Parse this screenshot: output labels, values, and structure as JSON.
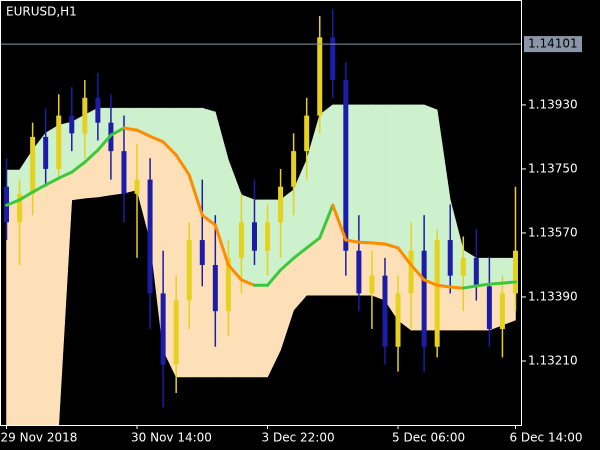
{
  "chart_data": {
    "type": "candlestick",
    "title": "EURUSD,H1",
    "categories": [
      "29 Nov 2018",
      null,
      null,
      null,
      null,
      null,
      null,
      null,
      null,
      null,
      "30 Nov 14:00",
      null,
      null,
      null,
      null,
      null,
      null,
      null,
      null,
      null,
      "3 Dec 22:00",
      null,
      null,
      null,
      null,
      null,
      null,
      null,
      null,
      null,
      "5 Dec 06:00",
      null,
      null,
      null,
      null,
      null,
      null,
      null,
      null,
      "6 Dec 14:00"
    ],
    "open": [
      1.137,
      1.136,
      1.1368,
      1.1384,
      1.1375,
      1.139,
      1.1385,
      1.1395,
      1.1388,
      1.138,
      1.1368,
      1.1372,
      1.134,
      1.132,
      1.1338,
      1.1355,
      1.1348,
      1.1335,
      1.135,
      1.136,
      1.1352,
      1.136,
      1.137,
      1.138,
      1.139,
      1.1412,
      1.14,
      1.1352,
      1.134,
      1.1345,
      1.1325,
      1.134,
      1.1352,
      1.1325,
      1.1355,
      1.1345,
      1.135,
      1.1342,
      1.133,
      1.134
    ],
    "high": [
      1.1378,
      1.1372,
      1.1388,
      1.1392,
      1.1396,
      1.1398,
      1.14,
      1.1402,
      1.1396,
      1.139,
      1.1382,
      1.1378,
      1.1352,
      1.1345,
      1.136,
      1.1372,
      1.1362,
      1.1355,
      1.1368,
      1.1372,
      1.1365,
      1.1375,
      1.1385,
      1.1395,
      1.1418,
      1.142,
      1.1405,
      1.1362,
      1.1352,
      1.135,
      1.1345,
      1.136,
      1.1362,
      1.1358,
      1.1365,
      1.1356,
      1.1358,
      1.135,
      1.1345,
      1.137
    ],
    "low": [
      1.1355,
      1.1348,
      1.1362,
      1.137,
      1.1372,
      1.138,
      1.1378,
      1.1383,
      1.1372,
      1.136,
      1.135,
      1.133,
      1.1308,
      1.1312,
      1.133,
      1.1342,
      1.1325,
      1.1328,
      1.134,
      1.1348,
      1.1345,
      1.135,
      1.1362,
      1.1372,
      1.1385,
      1.1395,
      1.1345,
      1.1335,
      1.133,
      1.132,
      1.1318,
      1.133,
      1.1318,
      1.1322,
      1.134,
      1.1335,
      1.1338,
      1.1325,
      1.1322,
      1.1335
    ],
    "close": [
      1.136,
      1.1368,
      1.1384,
      1.1375,
      1.139,
      1.1385,
      1.1395,
      1.1388,
      1.138,
      1.1368,
      1.1372,
      1.134,
      1.132,
      1.1338,
      1.1355,
      1.1348,
      1.1335,
      1.135,
      1.136,
      1.1352,
      1.136,
      1.137,
      1.138,
      1.139,
      1.1412,
      1.14,
      1.1352,
      1.134,
      1.1345,
      1.1325,
      1.134,
      1.1352,
      1.1325,
      1.1355,
      1.1345,
      1.135,
      1.1342,
      1.133,
      1.134,
      1.1352
    ],
    "up_color": "#e6d21e",
    "down_color": "#1c1ca8",
    "bands": {
      "upper": [
        1.13747,
        1.13747,
        1.13803,
        1.13851,
        1.13873,
        1.13882,
        1.13902,
        1.13921,
        1.13921,
        1.13921,
        1.13921,
        1.13921,
        1.13921,
        1.13921,
        1.13921,
        1.13921,
        1.1391,
        1.13775,
        1.13677,
        1.13663,
        1.13663,
        1.13663,
        1.13691,
        1.13775,
        1.13902,
        1.1393,
        1.1393,
        1.1393,
        1.1393,
        1.1393,
        1.1393,
        1.1393,
        1.1393,
        1.13916,
        1.13663,
        1.13522,
        1.13499,
        1.13499,
        1.13499,
        1.13499
      ],
      "middle": [
        1.13648,
        1.13663,
        1.13685,
        1.13705,
        1.13724,
        1.13741,
        1.13769,
        1.13803,
        1.13845,
        1.13865,
        1.13859,
        1.13842,
        1.13826,
        1.13789,
        1.13733,
        1.1362,
        1.13592,
        1.1348,
        1.13438,
        1.13423,
        1.13423,
        1.13466,
        1.13499,
        1.13528,
        1.13556,
        1.13648,
        1.1355,
        1.13544,
        1.13542,
        1.13539,
        1.13528,
        1.1348,
        1.13438,
        1.13423,
        1.13418,
        1.13415,
        1.13421,
        1.13426,
        1.13429,
        1.13432
      ],
      "lower": [
        1.1303,
        1.1303,
        1.1303,
        1.1303,
        1.1303,
        1.13663,
        1.13668,
        1.13671,
        1.13677,
        1.13682,
        1.13691,
        1.1355,
        1.13241,
        1.13165,
        1.13165,
        1.13165,
        1.13165,
        1.13165,
        1.13165,
        1.13165,
        1.13165,
        1.13241,
        1.13353,
        1.13395,
        1.13395,
        1.13395,
        1.13395,
        1.13395,
        1.13395,
        1.13381,
        1.13325,
        1.13297,
        1.13297,
        1.13297,
        1.13297,
        1.13297,
        1.13297,
        1.13297,
        1.13311,
        1.13325
      ],
      "upper_fill": "#cdf0cd",
      "lower_fill": "#fde0b8",
      "rising_color": "#3cc83c",
      "falling_color": "#ff8c00"
    },
    "price_line": 1.14101,
    "ylim": [
      1.1303,
      1.14225
    ],
    "yticks": [
      {
        "value": 1.1321,
        "label": "1.13210"
      },
      {
        "value": 1.1339,
        "label": "1.13390"
      },
      {
        "value": 1.1357,
        "label": "1.13570"
      },
      {
        "value": 1.1375,
        "label": "1.13750"
      },
      {
        "value": 1.1393,
        "label": "1.13930"
      }
    ]
  }
}
